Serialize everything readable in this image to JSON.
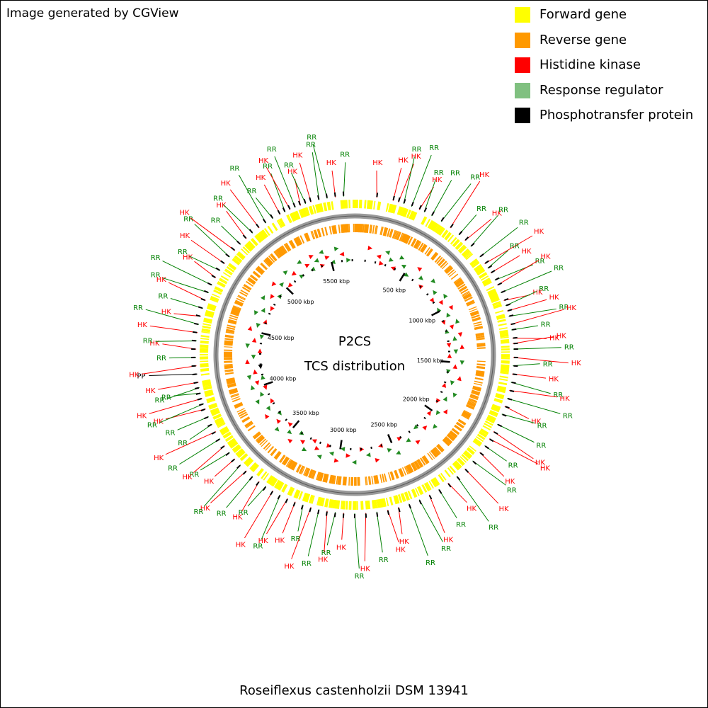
{
  "header": {
    "credit": "Image generated by CGView"
  },
  "legend": [
    {
      "label": "Forward gene",
      "color": "#ffff00"
    },
    {
      "label": "Reverse gene",
      "color": "#ff9900"
    },
    {
      "label": "Histidine kinase",
      "color": "#ff0000"
    },
    {
      "label": "Response regulator",
      "color": "#80c080"
    },
    {
      "label": "Phosphotransfer protein",
      "color": "#000000"
    }
  ],
  "center": {
    "title": "P2CS",
    "subtitle": "TCS distribution"
  },
  "footer": {
    "organism": "Roseiflexus castenholzii DSM 13941"
  },
  "map": {
    "genome_kbp": 5723,
    "scale_labels": [
      "500 kbp",
      "1000 kbp",
      "1500 kbp",
      "2000 kbp",
      "2500 kbp",
      "3000 kbp",
      "3500 kbp",
      "4000 kbp",
      "4500 kbp",
      "5000 kbp",
      "5500 kbp"
    ],
    "colors": {
      "forward": "#ffff00",
      "reverse": "#ff9900",
      "hk": "#ff0000",
      "rr_label": "#008000",
      "rr_marker": "#228b22",
      "pp": "#000000",
      "backbone": "#808080"
    },
    "features": [
      {
        "type": "HK",
        "angle": 8
      },
      {
        "type": "HK",
        "angle": 14
      },
      {
        "type": "HK",
        "angle": 16
      },
      {
        "type": "RR",
        "angle": 18
      },
      {
        "type": "RR",
        "angle": 21
      },
      {
        "type": "HK",
        "angle": 24
      },
      {
        "type": "RR",
        "angle": 26
      },
      {
        "type": "RR",
        "angle": 29
      },
      {
        "type": "RR",
        "angle": 33
      },
      {
        "type": "HK",
        "angle": 37
      },
      {
        "type": "RR",
        "angle": 41
      },
      {
        "type": "HK",
        "angle": 44
      },
      {
        "type": "RR",
        "angle": 47
      },
      {
        "type": "RR",
        "angle": 52
      },
      {
        "type": "HK",
        "angle": 55
      },
      {
        "type": "RR",
        "angle": 57
      },
      {
        "type": "HK",
        "angle": 59
      },
      {
        "type": "RR",
        "angle": 62
      },
      {
        "type": "HK",
        "angle": 64
      },
      {
        "type": "RR",
        "angle": 67
      },
      {
        "type": "HK",
        "angle": 70
      },
      {
        "type": "RR",
        "angle": 72
      },
      {
        "type": "HK",
        "angle": 74
      },
      {
        "type": "RR",
        "angle": 76
      },
      {
        "type": "HK",
        "angle": 79
      },
      {
        "type": "RR",
        "angle": 81
      },
      {
        "type": "HK",
        "angle": 84
      },
      {
        "type": "HK",
        "angle": 86
      },
      {
        "type": "RR",
        "angle": 88
      },
      {
        "type": "HK",
        "angle": 91
      },
      {
        "type": "RR",
        "angle": 94
      },
      {
        "type": "HK",
        "angle": 97
      },
      {
        "type": "RR",
        "angle": 100
      },
      {
        "type": "HK",
        "angle": 103
      },
      {
        "type": "RR",
        "angle": 106
      },
      {
        "type": "HK",
        "angle": 109
      },
      {
        "type": "RR",
        "angle": 112
      },
      {
        "type": "RR",
        "angle": 116
      },
      {
        "type": "HK",
        "angle": 119
      },
      {
        "type": "HK",
        "angle": 122
      },
      {
        "type": "RR",
        "angle": 125
      },
      {
        "type": "HK",
        "angle": 128
      },
      {
        "type": "RR",
        "angle": 132
      },
      {
        "type": "HK",
        "angle": 136
      },
      {
        "type": "RR",
        "angle": 140
      },
      {
        "type": "HK",
        "angle": 144
      },
      {
        "type": "RR",
        "angle": 148
      },
      {
        "type": "HK",
        "angle": 152
      },
      {
        "type": "RR",
        "angle": 156
      },
      {
        "type": "RR",
        "angle": 160
      },
      {
        "type": "HK",
        "angle": 164
      },
      {
        "type": "HK",
        "angle": 168
      },
      {
        "type": "RR",
        "angle": 172
      },
      {
        "type": "HK",
        "angle": 176
      },
      {
        "type": "RR",
        "angle": 180
      },
      {
        "type": "HK",
        "angle": 184
      },
      {
        "type": "RR",
        "angle": 187
      },
      {
        "type": "HK",
        "angle": 190
      },
      {
        "type": "RR",
        "angle": 193
      },
      {
        "type": "HK",
        "angle": 196
      },
      {
        "type": "RR",
        "angle": 199
      },
      {
        "type": "HK",
        "angle": 202
      },
      {
        "type": "HK",
        "angle": 205
      },
      {
        "type": "RR",
        "angle": 208
      },
      {
        "type": "HK",
        "angle": 211
      },
      {
        "type": "RR",
        "angle": 214
      },
      {
        "type": "HK",
        "angle": 217
      },
      {
        "type": "RR",
        "angle": 220
      },
      {
        "type": "HK",
        "angle": 223
      },
      {
        "type": "RR",
        "angle": 226
      },
      {
        "type": "HK",
        "angle": 229
      },
      {
        "type": "RR",
        "angle": 232
      },
      {
        "type": "HK",
        "angle": 235
      },
      {
        "type": "RR",
        "angle": 238
      },
      {
        "type": "HK",
        "angle": 241
      },
      {
        "type": "RR",
        "angle": 244
      },
      {
        "type": "RR",
        "angle": 247
      },
      {
        "type": "HK",
        "angle": 250
      },
      {
        "type": "RR",
        "angle": 252
      },
      {
        "type": "HK",
        "angle": 254
      },
      {
        "type": "RR",
        "angle": 256
      },
      {
        "type": "RR",
        "angle": 258
      },
      {
        "type": "HK",
        "angle": 260
      },
      {
        "type": "PP",
        "angle": 263
      },
      {
        "type": "HK",
        "angle": 266
      },
      {
        "type": "RR",
        "angle": 269
      },
      {
        "type": "HK",
        "angle": 272
      },
      {
        "type": "RR",
        "angle": 275
      },
      {
        "type": "HK",
        "angle": 278
      },
      {
        "type": "RR",
        "angle": 281
      },
      {
        "type": "HK",
        "angle": 284
      },
      {
        "type": "RR",
        "angle": 287
      },
      {
        "type": "HK",
        "angle": 290
      },
      {
        "type": "RR",
        "angle": 293
      },
      {
        "type": "RR",
        "angle": 296
      },
      {
        "type": "HK",
        "angle": 299
      },
      {
        "type": "RR",
        "angle": 302
      },
      {
        "type": "HK",
        "angle": 305
      },
      {
        "type": "RR",
        "angle": 308
      },
      {
        "type": "HK",
        "angle": 311
      },
      {
        "type": "RR",
        "angle": 314
      },
      {
        "type": "HK",
        "angle": 317
      },
      {
        "type": "RR",
        "angle": 320
      },
      {
        "type": "HK",
        "angle": 323
      },
      {
        "type": "RR",
        "angle": 326
      },
      {
        "type": "RR",
        "angle": 329
      },
      {
        "type": "HK",
        "angle": 332
      },
      {
        "type": "RR",
        "angle": 334
      },
      {
        "type": "HK",
        "angle": 336
      },
      {
        "type": "RR",
        "angle": 338
      },
      {
        "type": "HK",
        "angle": 340
      },
      {
        "type": "RR",
        "angle": 342
      },
      {
        "type": "HK",
        "angle": 344
      },
      {
        "type": "RR",
        "angle": 347
      },
      {
        "type": "RR",
        "angle": 350
      },
      {
        "type": "HK",
        "angle": 353
      },
      {
        "type": "RR",
        "angle": 356
      }
    ]
  }
}
